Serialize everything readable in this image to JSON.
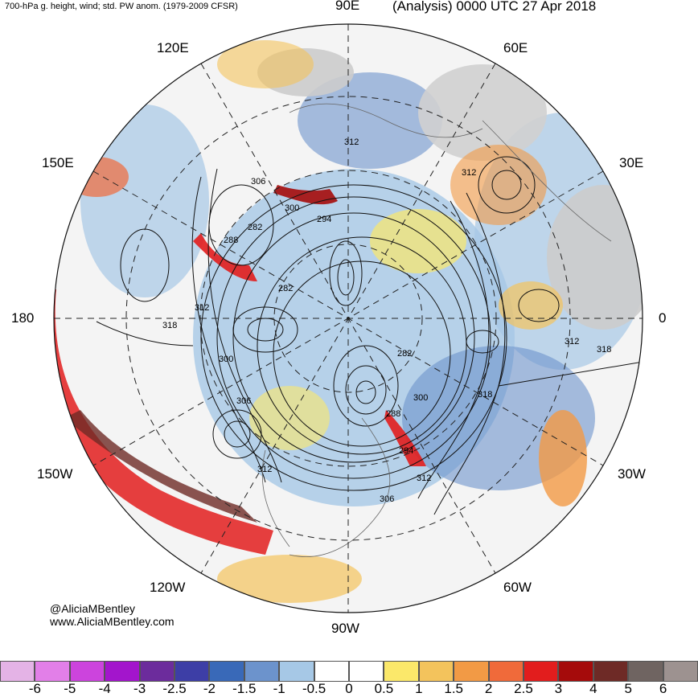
{
  "header": {
    "left_title": "700-hPa g. height, wind; std. PW anom. (1979-2009 CFSR)",
    "right_title": "(Analysis) 0000 UTC 27 Apr 2018"
  },
  "credits": {
    "handle": "@AliciaMBentley",
    "website": "www.AliciaMBentley.com"
  },
  "longitude_labels": {
    "e90": "90E",
    "e60": "60E",
    "e120": "120E",
    "e150": "150E",
    "e30": "30E",
    "d180": "180",
    "d0": "0",
    "w150": "150W",
    "w30": "30W",
    "w120": "120W",
    "w60": "60W",
    "w90": "90W"
  },
  "contour_labels": [
    {
      "id": "c1",
      "text": "312"
    },
    {
      "id": "c2",
      "text": "312"
    },
    {
      "id": "c3",
      "text": "306"
    },
    {
      "id": "c4",
      "text": "300"
    },
    {
      "id": "c5",
      "text": "294"
    },
    {
      "id": "c6",
      "text": "282"
    },
    {
      "id": "c7",
      "text": "288"
    },
    {
      "id": "c8",
      "text": "282"
    },
    {
      "id": "c9",
      "text": "312"
    },
    {
      "id": "c10",
      "text": "318"
    },
    {
      "id": "c11",
      "text": "300"
    },
    {
      "id": "c12",
      "text": "282"
    },
    {
      "id": "c13",
      "text": "306"
    },
    {
      "id": "c14",
      "text": "300"
    },
    {
      "id": "c15",
      "text": "288"
    },
    {
      "id": "c16",
      "text": "294"
    },
    {
      "id": "c17",
      "text": "312"
    },
    {
      "id": "c18",
      "text": "306"
    },
    {
      "id": "c19",
      "text": "312"
    },
    {
      "id": "c20",
      "text": "318"
    },
    {
      "id": "c21",
      "text": "312"
    },
    {
      "id": "c22",
      "text": "318"
    },
    {
      "id": "c23",
      "text": "312"
    }
  ],
  "colorbar": {
    "colors": [
      "#e4b3e6",
      "#e27fe8",
      "#cc44dd",
      "#a315cc",
      "#6c2c9c",
      "#3d3ea6",
      "#3969b8",
      "#6c93cc",
      "#a6c8e6",
      "#ffffff",
      "#ffffff",
      "#fbe86a",
      "#f3c35c",
      "#f29a45",
      "#f06a3a",
      "#e21d1d",
      "#a50b0b",
      "#6e2a26",
      "#6f6461",
      "#9d9290"
    ],
    "ticks": [
      "-6",
      "-5",
      "-4",
      "-3",
      "-2.5",
      "-2",
      "-1.5",
      "-1",
      "-0.5",
      "0",
      "0.5",
      "1",
      "1.5",
      "2",
      "2.5",
      "3",
      "4",
      "5",
      "6"
    ]
  }
}
